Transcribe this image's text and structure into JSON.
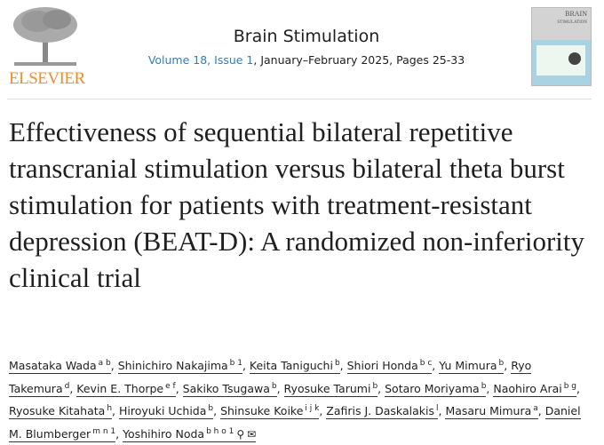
{
  "publisher": {
    "name": "ELSEVIER",
    "brand_color": "#f28c28"
  },
  "journal": {
    "title": "Brain Stimulation",
    "volume": "Volume 18, Issue 1",
    "details": ", January–February 2025, Pages 25-33",
    "link_color": "#2e7dc3"
  },
  "cover": {
    "title_line1": "BRAIN",
    "title_line2": "STIMULATION"
  },
  "article": {
    "title": "Effectiveness of sequential bilateral repetitive transcranial stimulation versus bilateral theta burst stimulation for patients with treatment-resistant depression (BEAT-D): A randomized non-inferiority clinical trial"
  },
  "authors": [
    {
      "name": "Masataka Wada",
      "sup": "a b"
    },
    {
      "name": "Shinichiro Nakajima",
      "sup": "b 1"
    },
    {
      "name": "Keita Taniguchi",
      "sup": "b"
    },
    {
      "name": "Shiori Honda",
      "sup": "b c"
    },
    {
      "name": "Yu Mimura",
      "sup": "b"
    },
    {
      "name": "Ryo Takemura",
      "sup": "d"
    },
    {
      "name": "Kevin E. Thorpe",
      "sup": "e f"
    },
    {
      "name": "Sakiko Tsugawa",
      "sup": "b"
    },
    {
      "name": "Ryosuke Tarumi",
      "sup": "b"
    },
    {
      "name": "Sotaro Moriyama",
      "sup": "b"
    },
    {
      "name": "Naohiro Arai",
      "sup": "b g"
    },
    {
      "name": "Ryosuke Kitahata",
      "sup": "h"
    },
    {
      "name": "Hiroyuki Uchida",
      "sup": "b"
    },
    {
      "name": "Shinsuke Koike",
      "sup": "i j k"
    },
    {
      "name": "Zafiris J. Daskalakis",
      "sup": "l"
    },
    {
      "name": "Masaru Mimura",
      "sup": "a"
    },
    {
      "name": "Daniel M. Blumberger",
      "sup": "m n 1"
    },
    {
      "name": "Yoshihiro Noda",
      "sup": "b h o 1",
      "icons": [
        "person-icon",
        "envelope-icon"
      ]
    }
  ]
}
